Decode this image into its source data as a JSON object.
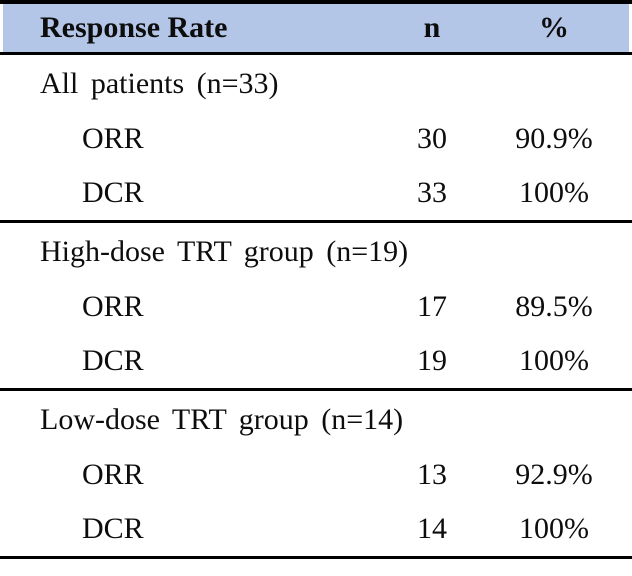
{
  "table": {
    "header": {
      "col1": "Response Rate",
      "col2": "n",
      "col3": "%"
    },
    "sections": [
      {
        "group_label": "All patients (n=33)",
        "rows": [
          {
            "label": "ORR",
            "n": "30",
            "pct": "90.9%"
          },
          {
            "label": "DCR",
            "n": "33",
            "pct": "100%"
          }
        ]
      },
      {
        "group_label": "High-dose TRT group (n=19)",
        "rows": [
          {
            "label": "ORR",
            "n": "17",
            "pct": "89.5%"
          },
          {
            "label": "DCR",
            "n": "19",
            "pct": "100%"
          }
        ]
      },
      {
        "group_label": "Low-dose TRT group (n=14)",
        "rows": [
          {
            "label": "ORR",
            "n": "13",
            "pct": "92.9%"
          },
          {
            "label": "DCR",
            "n": "14",
            "pct": "100%"
          }
        ]
      }
    ]
  },
  "chart_data": {
    "type": "table",
    "title": "Response Rate",
    "columns": [
      "Response Rate",
      "n",
      "%"
    ],
    "groups": [
      {
        "name": "All patients",
        "n_total": 33,
        "rows": [
          {
            "measure": "ORR",
            "n": 30,
            "percent": 90.9
          },
          {
            "measure": "DCR",
            "n": 33,
            "percent": 100
          }
        ]
      },
      {
        "name": "High-dose TRT group",
        "n_total": 19,
        "rows": [
          {
            "measure": "ORR",
            "n": 17,
            "percent": 89.5
          },
          {
            "measure": "DCR",
            "n": 19,
            "percent": 100
          }
        ]
      },
      {
        "name": "Low-dose TRT group",
        "n_total": 14,
        "rows": [
          {
            "measure": "ORR",
            "n": 13,
            "percent": 92.9
          },
          {
            "measure": "DCR",
            "n": 14,
            "percent": 100
          }
        ]
      }
    ]
  },
  "colors": {
    "header_bg": "#B4C6E7",
    "border": "#000000",
    "text": "#0d0d0d",
    "background": "#ffffff"
  }
}
